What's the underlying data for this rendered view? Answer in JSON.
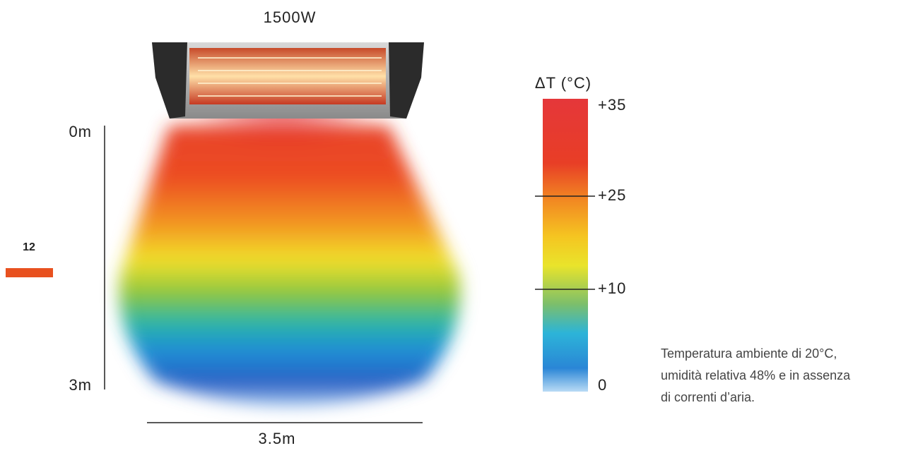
{
  "page_number": "12",
  "heater": {
    "power": "1500W"
  },
  "distance": {
    "top": "0m",
    "bottom": "3m",
    "width": "3.5m"
  },
  "legend": {
    "title": "ΔT (°C)",
    "ticks": [
      "+35",
      "+25",
      "+10",
      "0"
    ]
  },
  "note": {
    "lines": [
      "Temperatura ambiente di 20°C,",
      "umidità relativa 48% e in assenza",
      "di correnti d’aria."
    ]
  }
}
